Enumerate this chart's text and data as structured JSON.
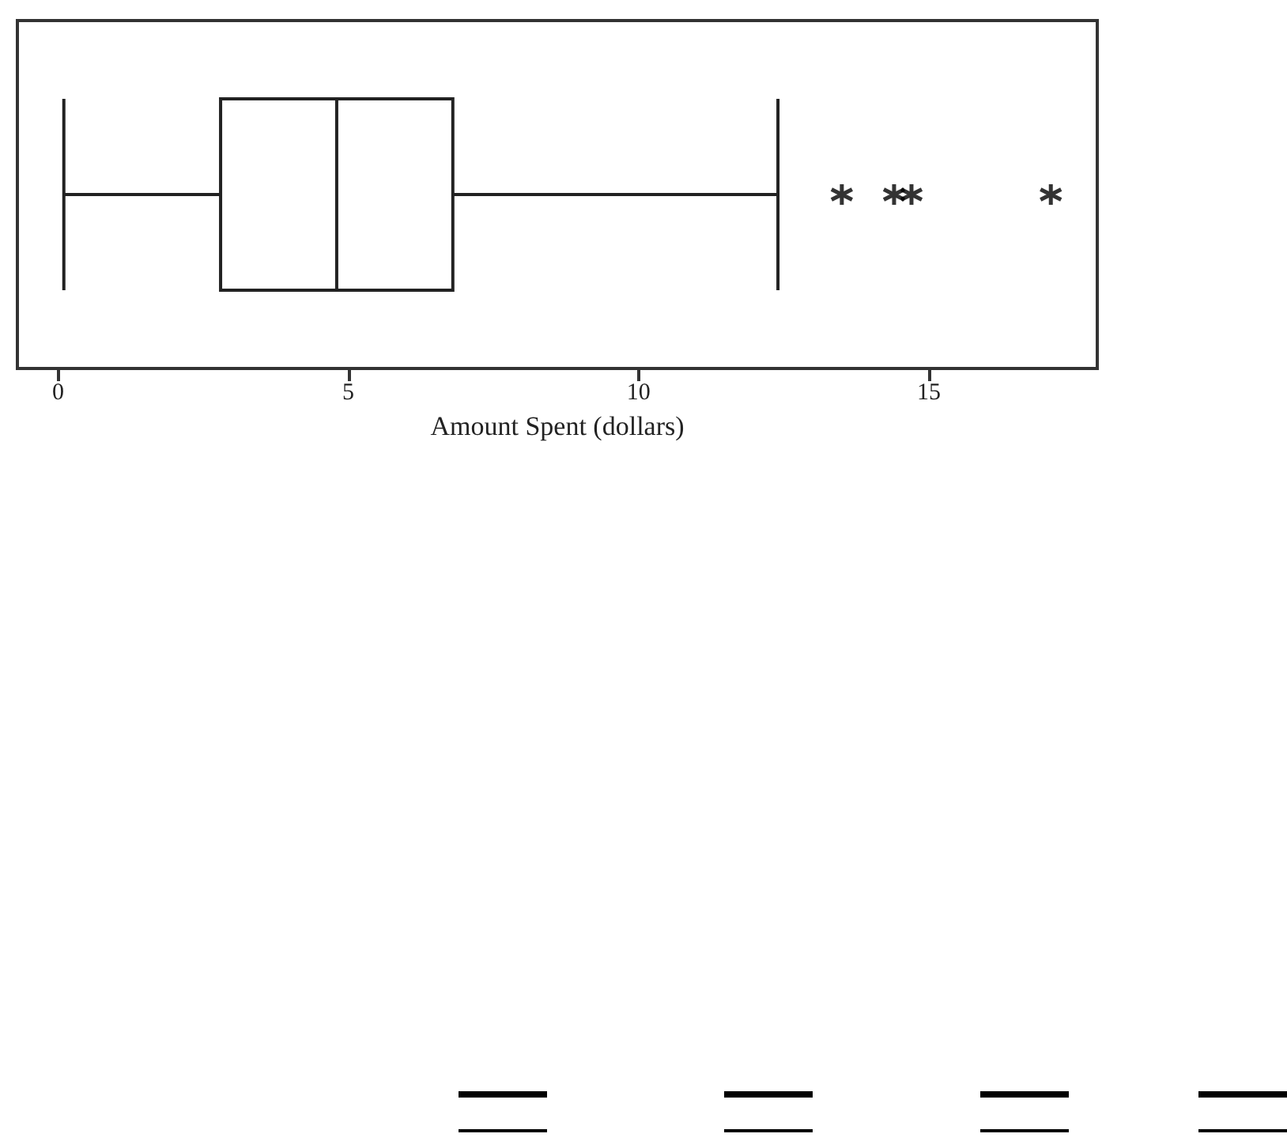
{
  "chart_data": {
    "type": "box",
    "orientation": "horizontal",
    "xlabel": "Amount Spent (dollars)",
    "categories": [
      null
    ],
    "boxes": [
      {
        "low": 0.1,
        "q1": 2.8,
        "median": 4.8,
        "q3": 6.8,
        "high": 12.4,
        "outliers": [
          13.5,
          14.4,
          14.7,
          17.1
        ]
      }
    ],
    "xlim": [
      -0.7,
      17.9
    ],
    "xticks": [
      0,
      5,
      10,
      15
    ],
    "tick_labels": "x",
    "marker": "star"
  }
}
